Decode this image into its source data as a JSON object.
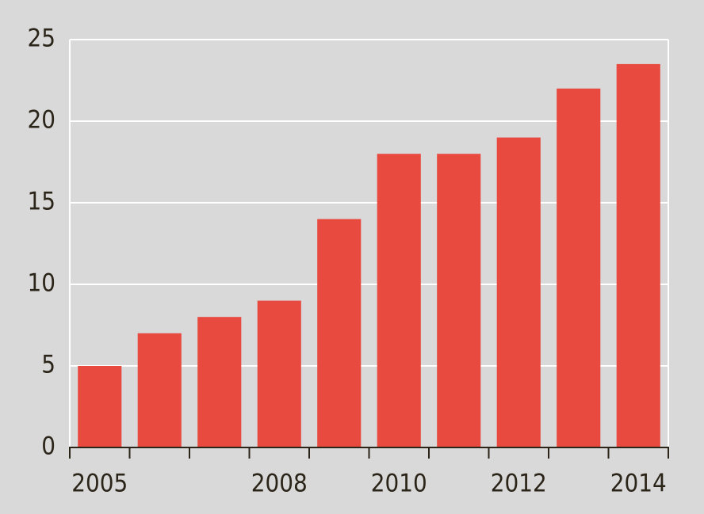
{
  "chart_data": {
    "type": "bar",
    "categories": [
      "2005",
      null,
      null,
      "2008",
      null,
      "2010",
      null,
      "2012",
      null,
      "2014"
    ],
    "values": [
      5,
      7,
      8,
      9,
      14,
      18,
      18,
      19,
      22,
      23.5
    ],
    "color": "#e84a40",
    "ylim": [
      0,
      25
    ],
    "yticks": [
      0,
      5,
      10,
      15,
      20,
      25
    ],
    "grid": true
  }
}
